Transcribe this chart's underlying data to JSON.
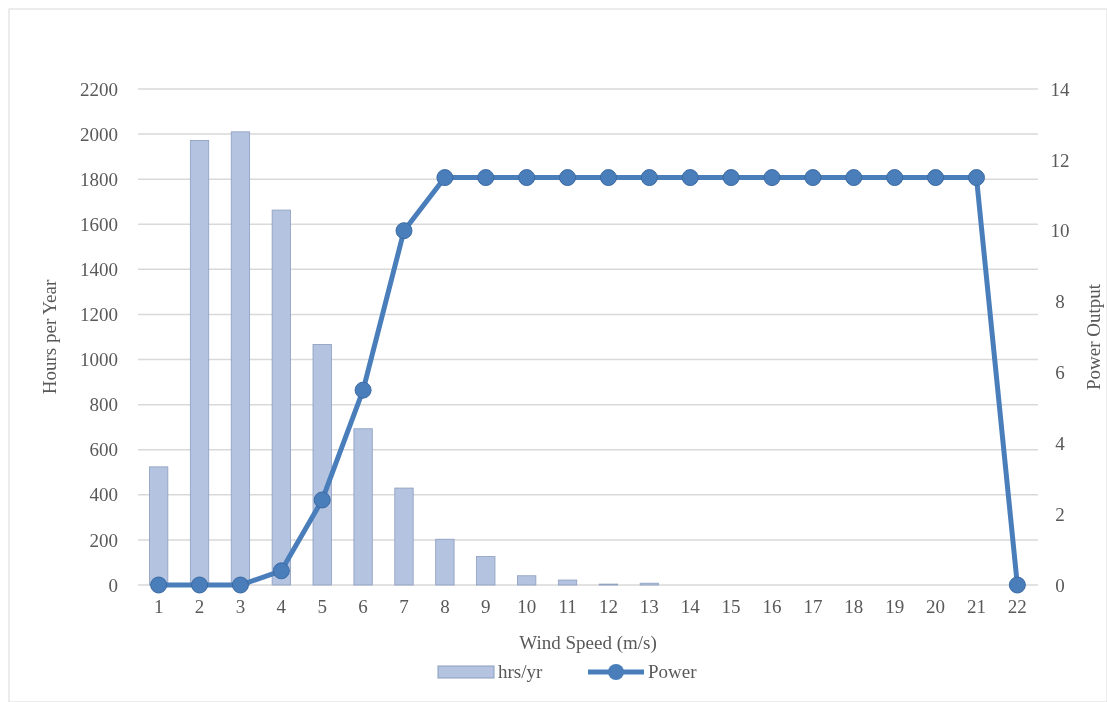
{
  "chart_data": {
    "type": "bar",
    "xlabel": "Wind Speed (m/s)",
    "ylabel": "Hours per Year",
    "y2label": "Power Output",
    "categories": [
      "1",
      "2",
      "3",
      "4",
      "5",
      "6",
      "7",
      "8",
      "9",
      "10",
      "11",
      "12",
      "13",
      "14",
      "15",
      "16",
      "17",
      "18",
      "19",
      "20",
      "21",
      "22"
    ],
    "series": [
      {
        "name": "hrs/yr",
        "color": "#b4c4e0",
        "values": [
          524,
          1972,
          2010,
          1663,
          1067,
          693,
          430,
          203,
          126,
          41,
          22,
          4,
          8,
          0,
          0,
          0,
          0,
          0,
          0,
          0,
          0,
          0
        ]
      },
      {
        "name": "Power",
        "type": "line",
        "axis": "y2",
        "color": "#4a7ebb",
        "values": [
          0,
          0,
          0,
          0.4,
          2.4,
          5.5,
          10,
          11.5,
          11.5,
          11.5,
          11.5,
          11.5,
          11.5,
          11.5,
          11.5,
          11.5,
          11.5,
          11.5,
          11.5,
          11.5,
          11.5,
          0
        ]
      }
    ],
    "ylim": [
      0,
      2200
    ],
    "yticks": [
      0,
      200,
      400,
      600,
      800,
      1000,
      1200,
      1400,
      1600,
      1800,
      2000,
      2200
    ],
    "y2lim": [
      0,
      14
    ],
    "y2ticks": [
      0,
      2,
      4,
      6,
      8,
      10,
      12,
      14
    ],
    "grid": "y",
    "legend": "bottom",
    "marker": "circle",
    "line_style": "solid"
  }
}
